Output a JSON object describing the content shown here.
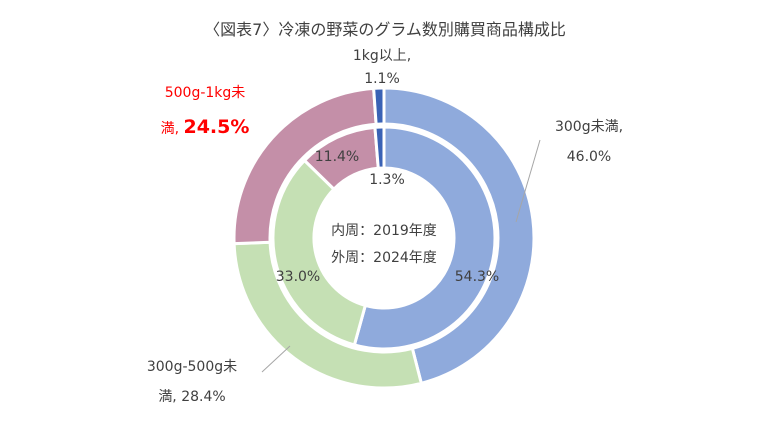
{
  "chart_data": {
    "type": "donut",
    "title": "〈図表7〉冷凍の野菜のグラム数別購買商品構成比",
    "center_labels": [
      "内周：2019年度",
      "外周：2024年度"
    ],
    "categories": [
      "300g未満",
      "300g-500g未満",
      "500g-1kg未満",
      "1kg以上"
    ],
    "colors": [
      "#8faadc",
      "#c5e0b4",
      "#c48fa8",
      "#3a62b5"
    ],
    "series": [
      {
        "name": "2019年度",
        "ring": "inner",
        "values": [
          54.3,
          33.0,
          11.4,
          1.3
        ]
      },
      {
        "name": "2024年度",
        "ring": "outer",
        "values": [
          46.0,
          28.4,
          24.5,
          1.1
        ]
      }
    ],
    "inner_value_labels": [
      "54.3%",
      "33.0%",
      "11.4%",
      "1.3%"
    ],
    "outer_labels": [
      {
        "line1": "300g未満,",
        "line2": "46.0%",
        "highlight": false
      },
      {
        "line1": "300g-500g未",
        "line2": "満, 28.4%",
        "highlight": false
      },
      {
        "line1": "500g-1kg未",
        "line2a": "満, ",
        "line2b": "24.5%",
        "highlight": true
      },
      {
        "line1": "1kg以上,",
        "line2": "1.1%",
        "highlight": false
      }
    ]
  }
}
